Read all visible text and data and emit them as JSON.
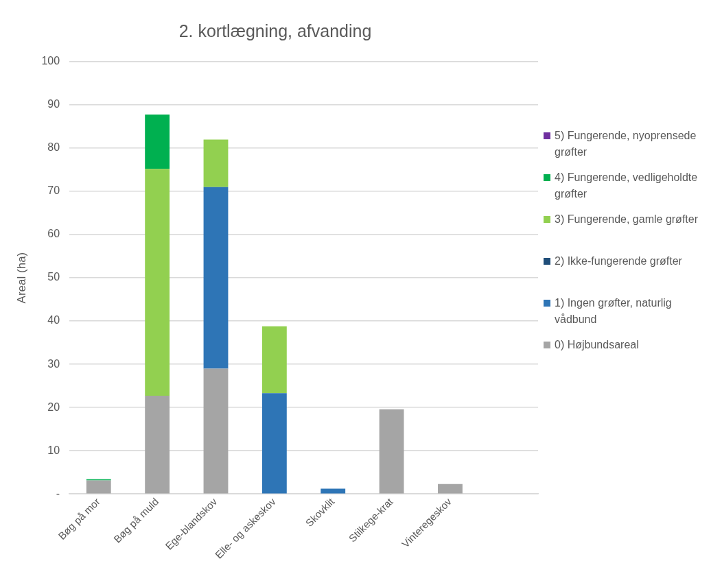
{
  "chart_data": {
    "type": "bar",
    "title": "2. kortlægning, afvanding",
    "ylabel": "Areal (ha)",
    "stacked": true,
    "legend": "right",
    "grid": "y",
    "categories": [
      "Bøg på mor",
      "Bøg på muld",
      "Ege-blandskov",
      "Elle- og askeskov",
      "Skovklit",
      "Stilkege-krat",
      "Vinteregeskov",
      null
    ],
    "ylim": [
      0,
      100
    ],
    "yticks": [
      {
        "value": 0,
        "label": "-"
      },
      10,
      20,
      30,
      40,
      50,
      60,
      70,
      80,
      90,
      100
    ],
    "series": [
      {
        "name": "0) Højbundsareal",
        "color": "#a5a5a5",
        "values": [
          3.1,
          22.7,
          29,
          null,
          null,
          19.6,
          2.3,
          null
        ]
      },
      {
        "name": "1) Ingen grøfter, naturlig vådbund",
        "color": "#2e75b6",
        "values": [
          null,
          null,
          42,
          23.3,
          1.2,
          null,
          null,
          null
        ]
      },
      {
        "name": "2) Ikke-fungerende grøfter",
        "color": "#1f4e79",
        "values": [
          null,
          null,
          null,
          null,
          null,
          null,
          null,
          null
        ]
      },
      {
        "name": "3) Fungerende, gamle grøfter",
        "color": "#92d050",
        "values": [
          null,
          52.5,
          11,
          15.5,
          null,
          null,
          null,
          null
        ]
      },
      {
        "name": "4) Fungerende, vedligeholdte grøfter",
        "color": "#00b050",
        "values": [
          0.3,
          12.6,
          null,
          null,
          null,
          null,
          null,
          null
        ]
      },
      {
        "name": "5) Fungerende, nyoprensede grøfter",
        "color": "#7030a0",
        "values": [
          null,
          null,
          null,
          null,
          null,
          null,
          null,
          null
        ]
      }
    ]
  }
}
